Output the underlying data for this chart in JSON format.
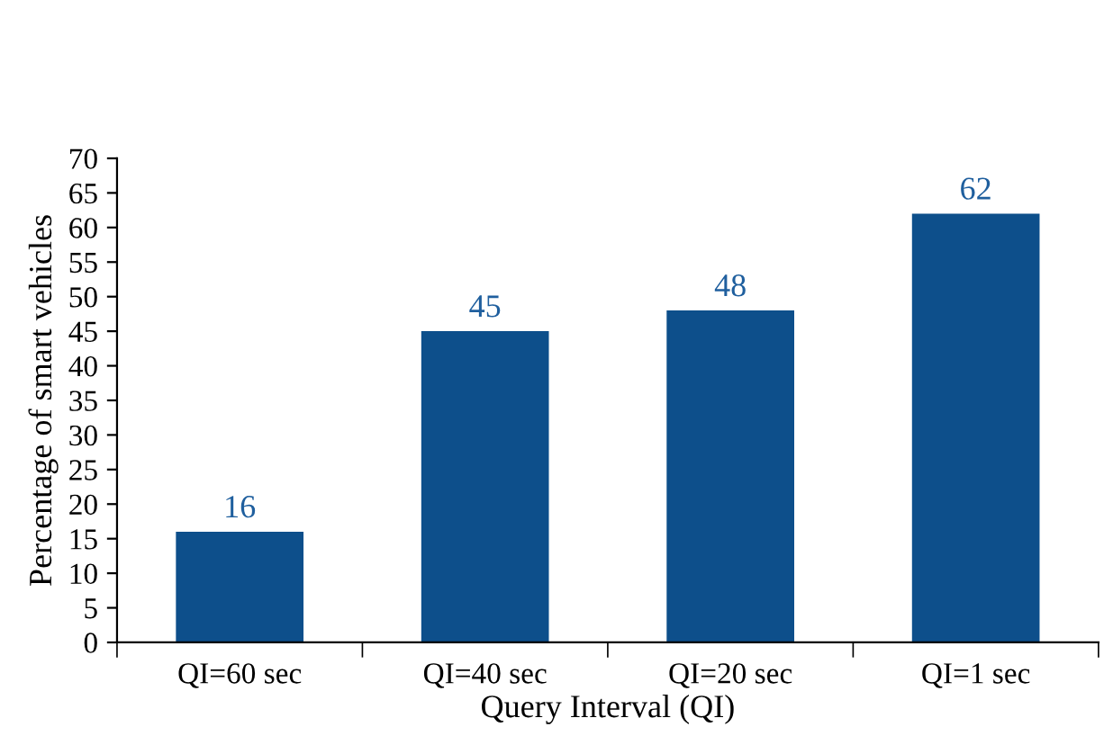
{
  "chart_data": {
    "type": "bar",
    "xlabel": "Query Interval (QI)",
    "ylabel": "Percentage of smart vehicles",
    "categories": [
      "QI=60 sec",
      "QI=40 sec",
      "QI=20 sec",
      "QI=1 sec"
    ],
    "values": [
      16,
      45,
      48,
      62
    ],
    "color": "#0d4f8b",
    "ylim": [
      0,
      70
    ],
    "yticks": [
      0,
      5,
      10,
      15,
      20,
      25,
      30,
      35,
      40,
      45,
      50,
      55,
      60,
      65,
      70
    ],
    "data_labels": true,
    "grid": false,
    "legend": false
  }
}
